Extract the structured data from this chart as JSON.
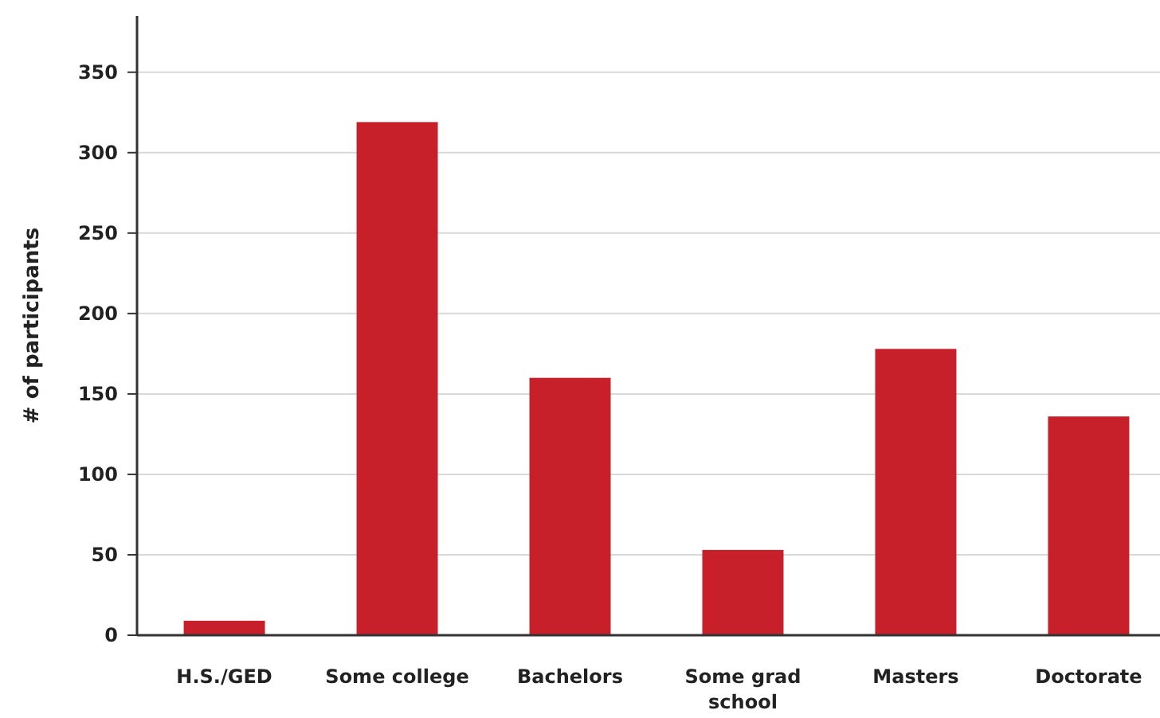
{
  "chart_data": {
    "type": "bar",
    "ylabel": "# of participants",
    "categories": [
      "H.S./GED",
      "Some college",
      "Bachelors",
      "Some grad school",
      "Masters",
      "Doctorate"
    ],
    "values": [
      9,
      319,
      160,
      53,
      178,
      136
    ],
    "color": "#c8202b",
    "ylim": [
      0,
      385
    ],
    "yticks": [
      0,
      50,
      100,
      150,
      200,
      250,
      300,
      350
    ],
    "grid": "y"
  }
}
